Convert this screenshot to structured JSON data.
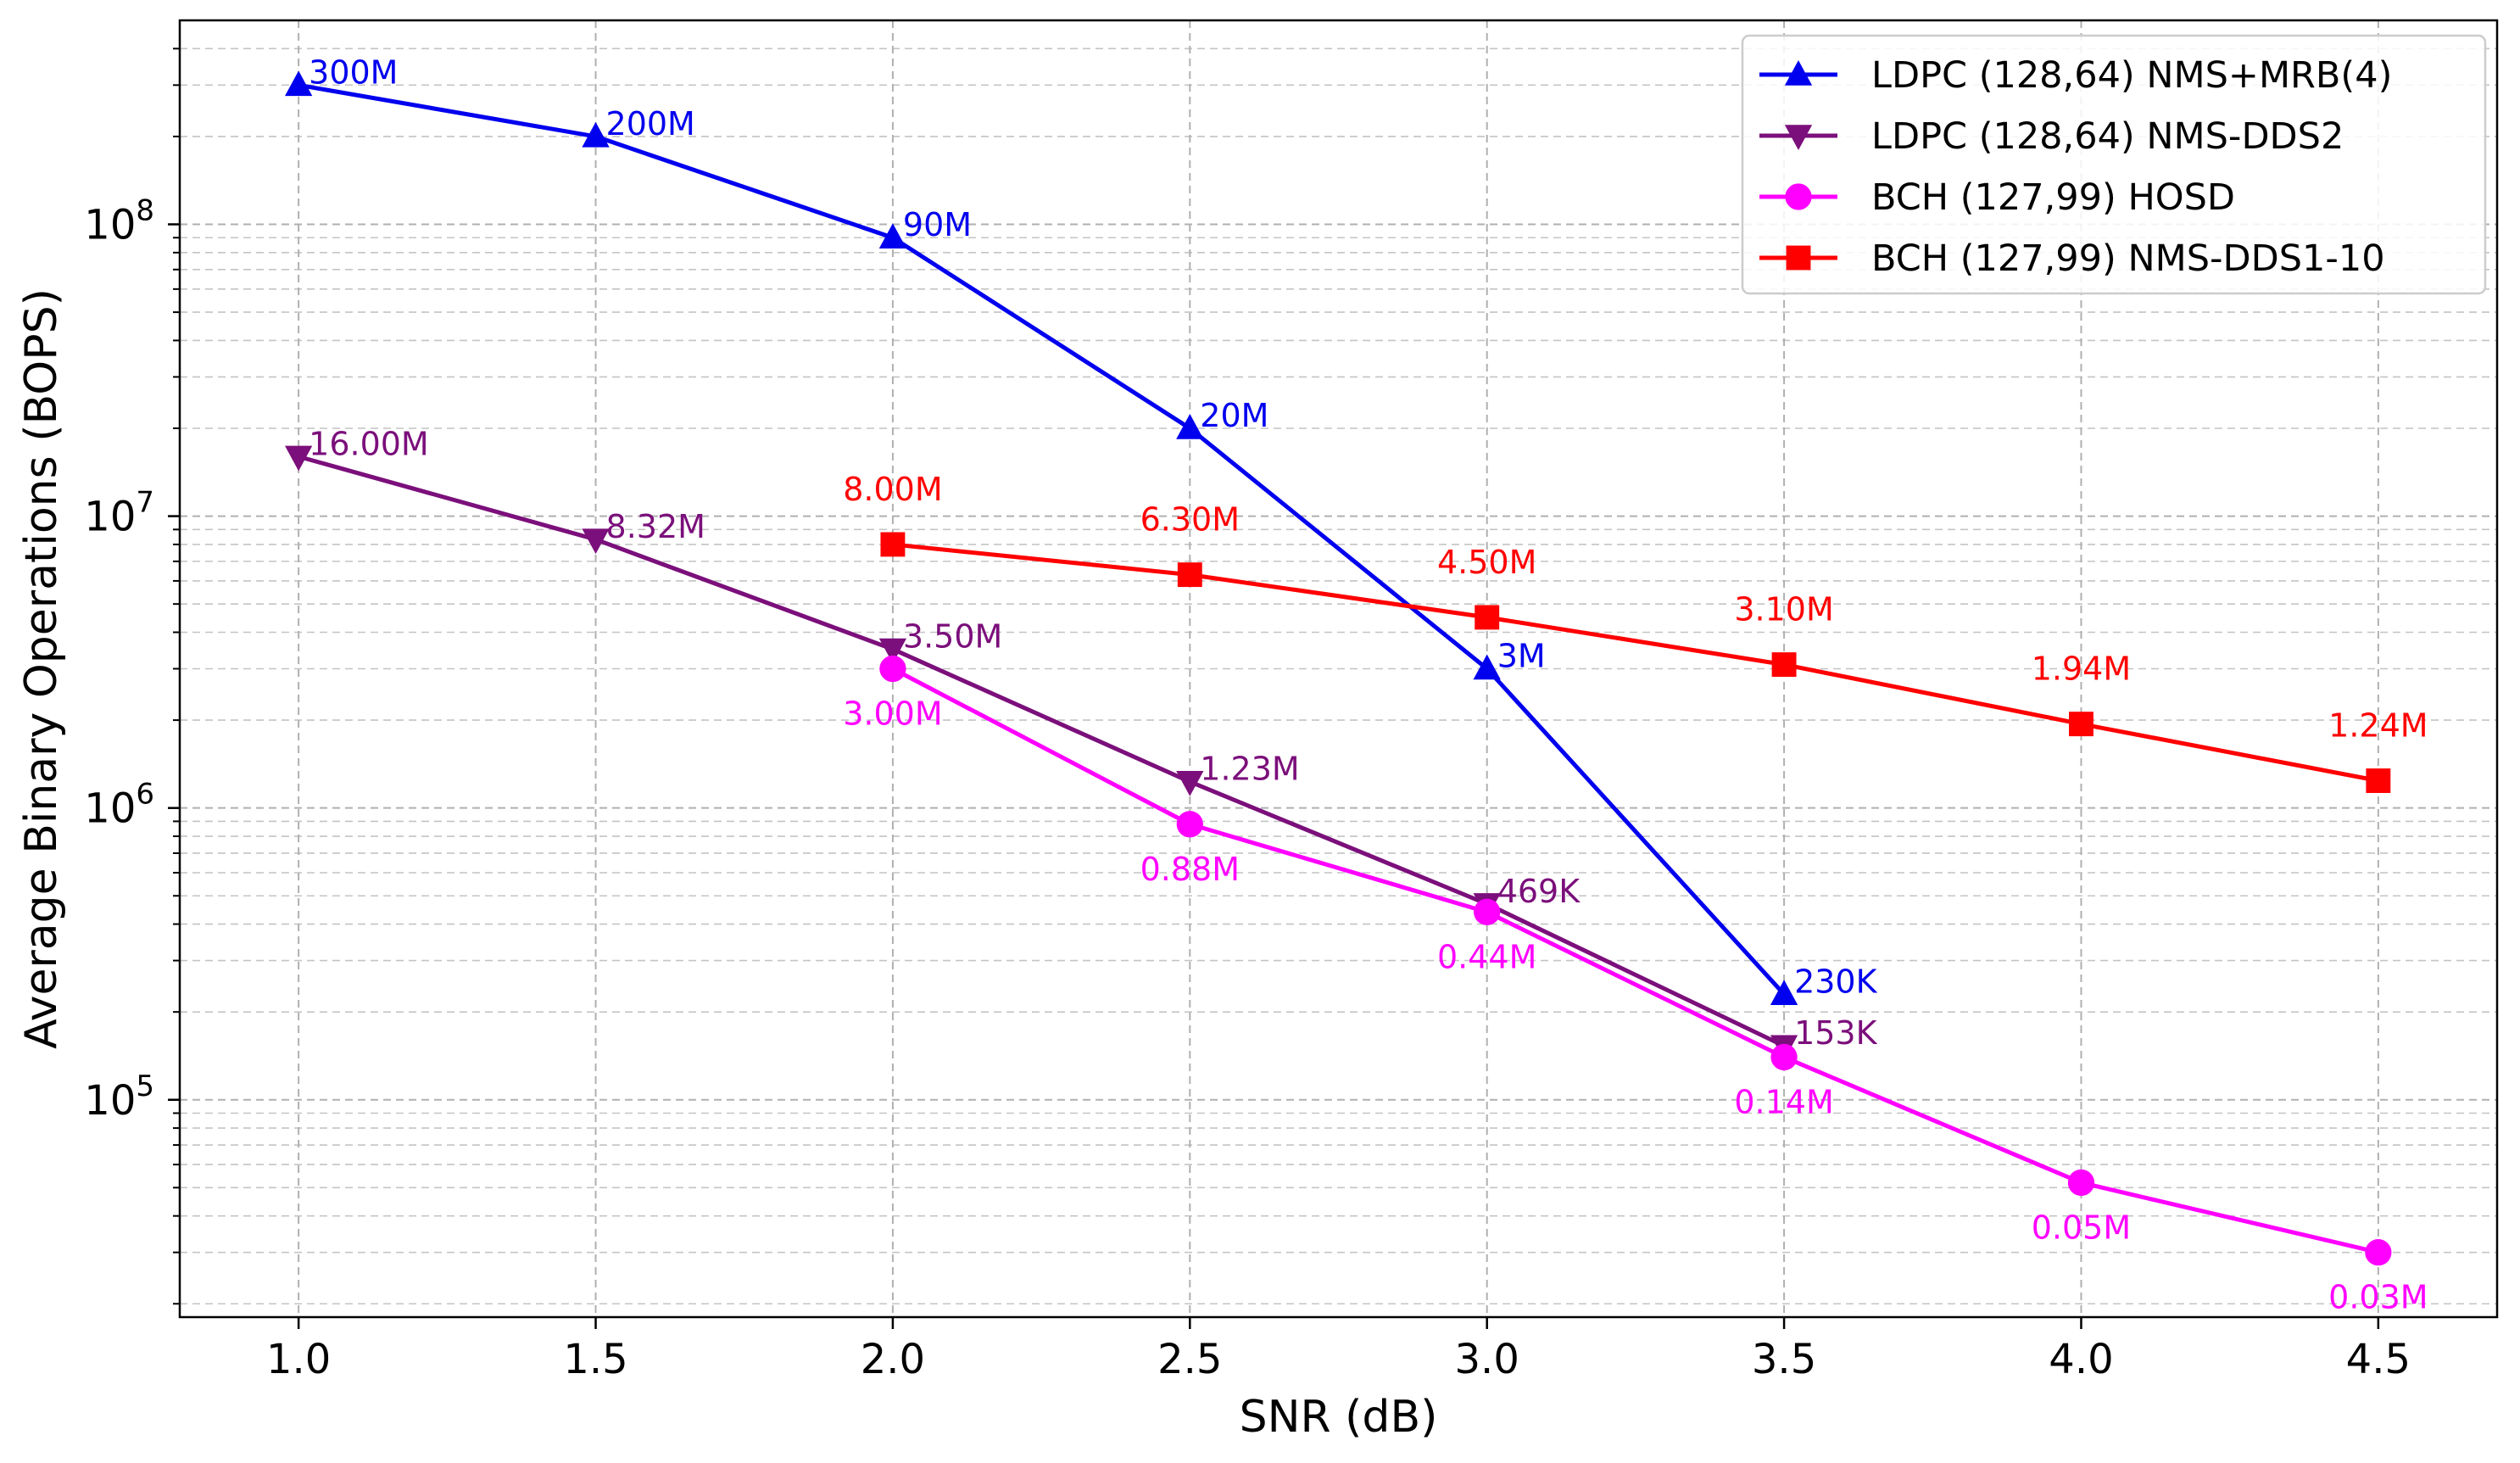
{
  "chart_data": {
    "type": "line",
    "title": "",
    "xlabel": "SNR (dB)",
    "ylabel": "Average Binary Operations (BOPS)",
    "yscale": "log",
    "xlim": [
      0.8,
      4.7
    ],
    "ylim": [
      18000,
      500000000
    ],
    "grid": true,
    "legend_position": "top-right",
    "x_ticks": [
      {
        "value": 1.0,
        "label": "1.0"
      },
      {
        "value": 1.5,
        "label": "1.5"
      },
      {
        "value": 2.0,
        "label": "2.0"
      },
      {
        "value": 2.5,
        "label": "2.5"
      },
      {
        "value": 3.0,
        "label": "3.0"
      },
      {
        "value": 3.5,
        "label": "3.5"
      },
      {
        "value": 4.0,
        "label": "4.0"
      },
      {
        "value": 4.5,
        "label": "4.5"
      }
    ],
    "y_ticks": [
      {
        "value": 100000,
        "base": "10",
        "exp": "5"
      },
      {
        "value": 1000000,
        "base": "10",
        "exp": "6"
      },
      {
        "value": 10000000,
        "base": "10",
        "exp": "7"
      },
      {
        "value": 100000000,
        "base": "10",
        "exp": "8"
      }
    ],
    "series": [
      {
        "name": "LDPC (128,64) NMS+MRB(4)",
        "color": "#0000ee",
        "marker": "triangle-up",
        "label_placement": "right",
        "points": [
          {
            "x": 1.0,
            "y": 300000000,
            "label": "300M"
          },
          {
            "x": 1.5,
            "y": 200000000,
            "label": "200M"
          },
          {
            "x": 2.0,
            "y": 90000000,
            "label": "90M"
          },
          {
            "x": 2.5,
            "y": 20000000,
            "label": "20M"
          },
          {
            "x": 3.0,
            "y": 3000000,
            "label": "3M"
          },
          {
            "x": 3.5,
            "y": 230000,
            "label": "230K"
          }
        ]
      },
      {
        "name": "LDPC (128,64) NMS-DDS2",
        "color": "#7b0f7b",
        "marker": "triangle-down",
        "label_placement": "right",
        "points": [
          {
            "x": 1.0,
            "y": 16000000,
            "label": "16.00M"
          },
          {
            "x": 1.5,
            "y": 8320000,
            "label": "8.32M"
          },
          {
            "x": 2.0,
            "y": 3500000,
            "label": "3.50M"
          },
          {
            "x": 2.5,
            "y": 1230000,
            "label": "1.23M"
          },
          {
            "x": 3.0,
            "y": 469000,
            "label": "469K"
          },
          {
            "x": 3.5,
            "y": 153000,
            "label": "153K"
          }
        ]
      },
      {
        "name": "BCH (127,99) HOSD",
        "color": "#ff00ff",
        "marker": "circle",
        "label_placement": "below",
        "points": [
          {
            "x": 2.0,
            "y": 3000000,
            "label": "3.00M"
          },
          {
            "x": 2.5,
            "y": 880000,
            "label": "0.88M"
          },
          {
            "x": 3.0,
            "y": 440000,
            "label": "0.44M"
          },
          {
            "x": 3.5,
            "y": 140000,
            "label": "0.14M"
          },
          {
            "x": 4.0,
            "y": 52000,
            "label": "0.05M"
          },
          {
            "x": 4.5,
            "y": 30000,
            "label": "0.03M"
          }
        ]
      },
      {
        "name": "BCH (127,99) NMS-DDS1-10",
        "color": "#ff0000",
        "marker": "square",
        "label_placement": "above",
        "points": [
          {
            "x": 2.0,
            "y": 8000000,
            "label": "8.00M"
          },
          {
            "x": 2.5,
            "y": 6300000,
            "label": "6.30M"
          },
          {
            "x": 3.0,
            "y": 4500000,
            "label": "4.50M"
          },
          {
            "x": 3.5,
            "y": 3100000,
            "label": "3.10M"
          },
          {
            "x": 4.0,
            "y": 1940000,
            "label": "1.94M"
          },
          {
            "x": 4.5,
            "y": 1240000,
            "label": "1.24M"
          }
        ]
      }
    ]
  }
}
